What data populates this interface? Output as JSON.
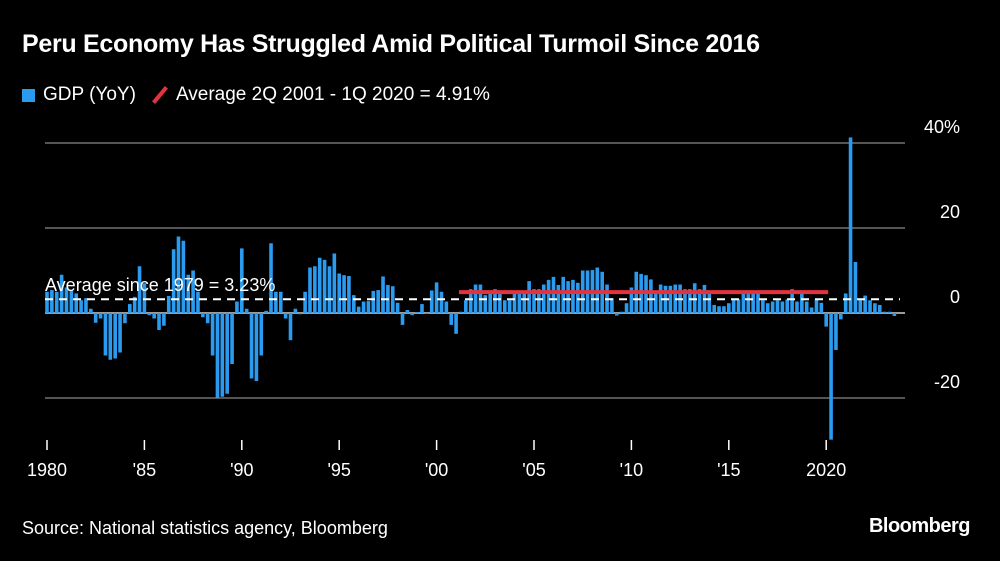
{
  "title": "Peru Economy Has Struggled Amid Political Turmoil Since 2016",
  "legend": [
    {
      "label": "GDP (YoY)",
      "color": "#2b9bf0",
      "marker": "square"
    },
    {
      "label": "Average 2Q 2001 - 1Q 2020 = 4.91%",
      "color": "#e2333f",
      "marker": "slash"
    }
  ],
  "annotation": "Average since 1979 = 3.23%",
  "source": "Source: National statistics agency, Bloomberg",
  "logo": "Bloomberg",
  "chart_data": {
    "type": "bar",
    "title": "Peru Economy Has Struggled Amid Political Turmoil Since 2016",
    "x_start": "1980 Q1",
    "frequency": "quarterly",
    "series": [
      {
        "name": "GDP (YoY)",
        "values": [
          5,
          5.4,
          5,
          9,
          6,
          5.4,
          4.6,
          3,
          3.5,
          1,
          -2.3,
          -1.3,
          -10,
          -11,
          -10.7,
          -9.3,
          -2.4,
          2.1,
          3.8,
          11,
          7,
          -0.5,
          -1.3,
          -4,
          -3,
          4,
          15,
          18,
          17,
          9,
          10,
          5,
          -1,
          -2.4,
          -10,
          -20,
          -19.7,
          -19,
          -12,
          2.7,
          15.2,
          1,
          -15.4,
          -16,
          -10,
          0.5,
          16.4,
          5,
          5,
          -1.3,
          -6.4,
          1,
          -0.3,
          5,
          10.7,
          11,
          13,
          12.5,
          11,
          14,
          9.3,
          8.9,
          8.7,
          4.2,
          1.5,
          2.7,
          2.8,
          5.2,
          5.4,
          8.6,
          6.6,
          6.3,
          2.4,
          -2.8,
          0.7,
          -0.5,
          0.2,
          2.1,
          -0.1,
          5.3,
          7.2,
          5,
          2.7,
          -2.8,
          -4.9,
          0.3,
          3,
          5.6,
          6.7,
          6.7,
          4.2,
          4.6,
          5.6,
          5,
          3,
          3,
          4.6,
          4.6,
          4.6,
          7.5,
          5.6,
          5.6,
          6.7,
          7.8,
          8.5,
          6.6,
          8.5,
          7.5,
          7.8,
          7.1,
          10,
          10,
          10.1,
          10.7,
          9.7,
          6.7,
          3.5,
          -0.6,
          0.3,
          2.3,
          6,
          9.7,
          9.2,
          8.9,
          7.9,
          4.6,
          6.7,
          6.4,
          6.4,
          6.7,
          6.7,
          5.6,
          5.6,
          7,
          5.6,
          6.6,
          4.6,
          1.9,
          1.6,
          1.6,
          2.3,
          3.2,
          3.2,
          4.6,
          4.6,
          4.6,
          4.6,
          3,
          2.3,
          2.7,
          3,
          2.7,
          3.2,
          5.6,
          2.7,
          4.6,
          2.7,
          1.3,
          3.2,
          2.4,
          -3.2,
          -29.8,
          -8.7,
          -1.5,
          4.6,
          41.3,
          12,
          3.2,
          4.1,
          3,
          2.3,
          1.9,
          0.3,
          0.3,
          -0.7
        ]
      }
    ],
    "reference_lines": [
      {
        "label": "Average since 1979 = 3.23%",
        "value": 3.23,
        "style": "dashed",
        "color": "#ffffff"
      },
      {
        "label": "Average 2Q 2001 - 1Q 2020 = 4.91%",
        "value": 4.91,
        "from": "2001 Q2",
        "to": "2020 Q1",
        "color": "#e2333f"
      }
    ],
    "y_ticks": [
      {
        "value": 40,
        "label": "40%"
      },
      {
        "value": 20,
        "label": "20"
      },
      {
        "value": 0,
        "label": "0"
      },
      {
        "value": -20,
        "label": "-20"
      }
    ],
    "x_ticks": [
      {
        "year": 1980,
        "label": "1980"
      },
      {
        "year": 1985,
        "label": "'85"
      },
      {
        "year": 1990,
        "label": "'90"
      },
      {
        "year": 1995,
        "label": "'95"
      },
      {
        "year": 2000,
        "label": "'00"
      },
      {
        "year": 2005,
        "label": "'05"
      },
      {
        "year": 2010,
        "label": "'10"
      },
      {
        "year": 2015,
        "label": "'15"
      },
      {
        "year": 2020,
        "label": "2020"
      }
    ],
    "ylim": [
      -32,
      42
    ],
    "y_axis_position": "right",
    "grid": true,
    "legend_position": "top-left"
  }
}
